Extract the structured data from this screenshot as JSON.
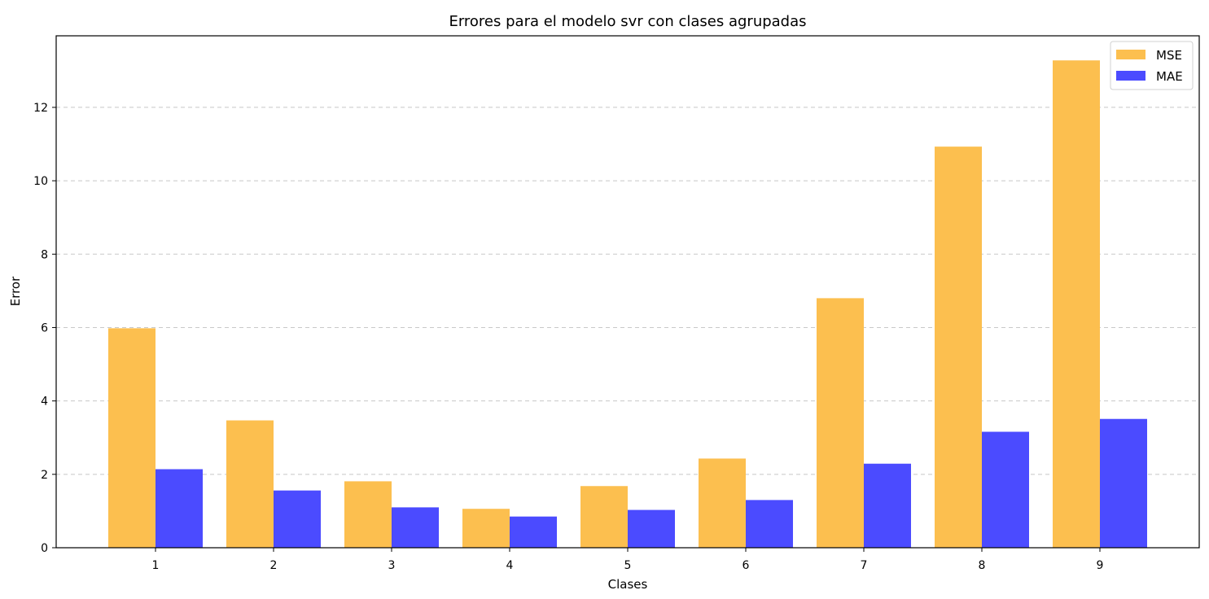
{
  "chart_data": {
    "type": "bar",
    "title": "Errores para el modelo svr con clases agrupadas",
    "xlabel": "Clases",
    "ylabel": "Error",
    "categories": [
      "1",
      "2",
      "3",
      "4",
      "5",
      "6",
      "7",
      "8",
      "9"
    ],
    "series": [
      {
        "name": "MSE",
        "color": "#FCBF4F",
        "values": [
          5.98,
          3.47,
          1.81,
          1.06,
          1.68,
          2.43,
          6.8,
          10.93,
          13.28
        ]
      },
      {
        "name": "MAE",
        "color": "#4B4BFF",
        "values": [
          2.14,
          1.56,
          1.1,
          0.85,
          1.03,
          1.3,
          2.29,
          3.16,
          3.51
        ]
      }
    ],
    "yticks": [
      0,
      2,
      4,
      6,
      8,
      10,
      12
    ],
    "ylim": [
      0,
      13.95
    ],
    "grid": "y-dashed",
    "legend_position": "top-right"
  }
}
